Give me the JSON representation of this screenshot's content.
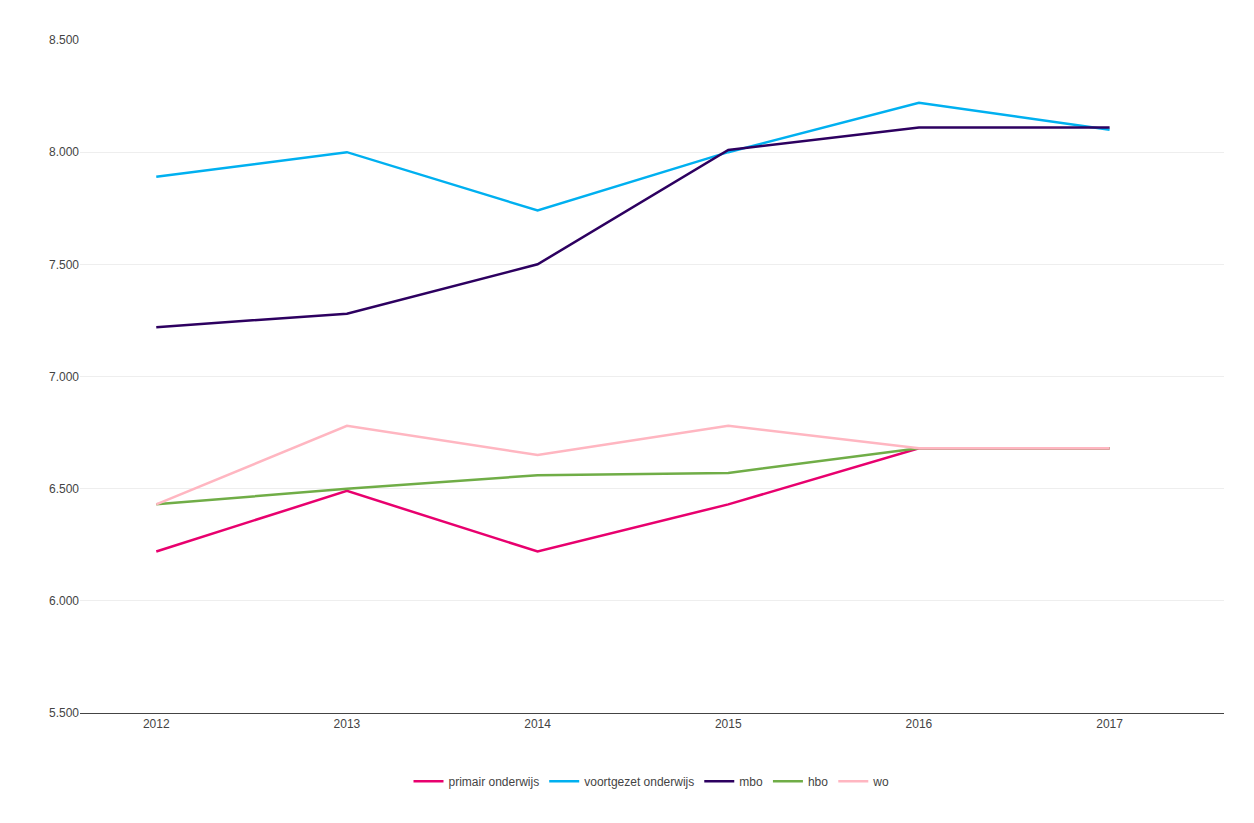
{
  "chart_data": {
    "type": "line",
    "x": [
      2012,
      2013,
      2014,
      2015,
      2016,
      2017
    ],
    "series": [
      {
        "name": "primair onderwijs",
        "color": "#E8006E",
        "values": [
          6220,
          6490,
          6220,
          6430,
          6680,
          6680
        ]
      },
      {
        "name": "voortgezet onderwijs",
        "color": "#00B0F0",
        "values": [
          7890,
          8000,
          7740,
          8000,
          8220,
          8100
        ]
      },
      {
        "name": "mbo",
        "color": "#2D0060",
        "values": [
          7220,
          7280,
          7500,
          8010,
          8110,
          8110
        ]
      },
      {
        "name": "hbo",
        "color": "#70AD47",
        "values": [
          6430,
          6500,
          6560,
          6570,
          6680,
          6680
        ]
      },
      {
        "name": "wo",
        "color": "#FFB6C1",
        "values": [
          6430,
          6780,
          6650,
          6780,
          6680,
          6680
        ]
      }
    ],
    "xlim": [
      2011.6,
      2017.6
    ],
    "xticks": [
      2012,
      2013,
      2014,
      2015,
      2016,
      2017
    ],
    "ylim": [
      5500,
      8500
    ],
    "yticks": [
      {
        "value": 5500,
        "label": "5.500"
      },
      {
        "value": 6000,
        "label": "6.000"
      },
      {
        "value": 6500,
        "label": "6.500"
      },
      {
        "value": 7000,
        "label": "7.000"
      },
      {
        "value": 7500,
        "label": "7.500"
      },
      {
        "value": 8000,
        "label": "8.000"
      },
      {
        "value": 8500,
        "label": "8.500"
      }
    ],
    "grid": "y",
    "legend": "bottom"
  }
}
